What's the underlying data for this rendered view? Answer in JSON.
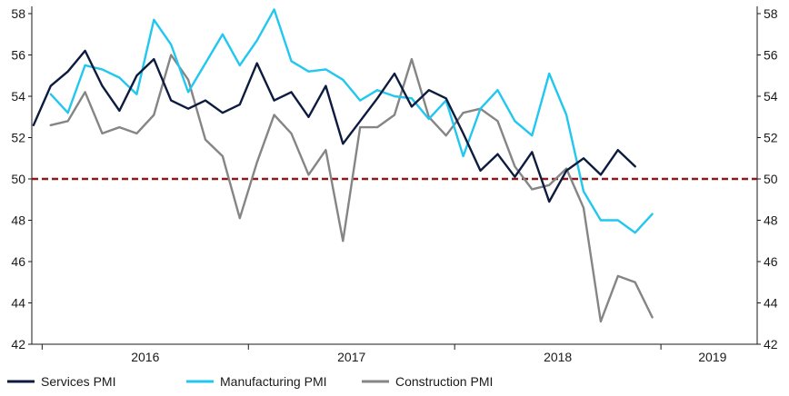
{
  "chart_data": {
    "type": "line",
    "title": "",
    "xlabel": "",
    "ylabel": "",
    "ylim": [
      42,
      58
    ],
    "y_ticks": [
      42,
      44,
      46,
      48,
      50,
      52,
      54,
      56,
      58
    ],
    "x_tick_labels": [
      "2016",
      "2017",
      "2018",
      "2019"
    ],
    "year_starts": [
      2016,
      2017,
      2018,
      2019
    ],
    "x_start": "2015-12",
    "x_end": "2019-06",
    "reference_line": {
      "value": 50,
      "color": "#8b1a1a"
    },
    "legend_position": "bottom",
    "grid": false,
    "series": [
      {
        "name": "Services PMI",
        "color": "#0d1b3e",
        "start": "2015-12",
        "values": [
          52.6,
          54.5,
          55.2,
          56.2,
          54.5,
          53.3,
          55.0,
          55.8,
          53.8,
          53.4,
          53.8,
          53.2,
          53.6,
          55.6,
          53.8,
          54.2,
          53.0,
          54.5,
          51.7,
          52.8,
          53.9,
          55.1,
          53.5,
          54.3,
          53.9,
          52.2,
          50.4,
          51.2,
          50.1,
          51.3,
          48.9,
          50.4,
          51.0,
          50.2,
          51.4,
          50.6
        ]
      },
      {
        "name": "Manufacturing PMI",
        "color": "#22c7f0",
        "start": "2016-01",
        "values": [
          54.1,
          53.2,
          55.5,
          55.3,
          54.9,
          54.1,
          57.7,
          56.5,
          54.2,
          55.6,
          57.0,
          55.5,
          56.7,
          58.2,
          55.7,
          55.2,
          55.3,
          54.8,
          53.8,
          54.3,
          54.0,
          53.9,
          52.9,
          53.8,
          51.1,
          53.4,
          54.3,
          52.8,
          52.1,
          55.1,
          53.1,
          49.4,
          48.0,
          48.0,
          47.4,
          48.3
        ]
      },
      {
        "name": "Construction PMI",
        "color": "#858585",
        "start": "2016-01",
        "values": [
          52.6,
          52.8,
          54.2,
          52.2,
          52.5,
          52.2,
          53.1,
          56.0,
          54.8,
          51.9,
          51.1,
          48.1,
          50.8,
          53.1,
          52.2,
          50.2,
          51.4,
          47.0,
          52.5,
          52.5,
          53.1,
          55.8,
          53.0,
          52.1,
          53.2,
          53.4,
          52.8,
          50.6,
          49.5,
          49.7,
          50.5,
          48.6,
          43.1,
          45.3,
          45.0,
          43.3
        ]
      }
    ]
  }
}
